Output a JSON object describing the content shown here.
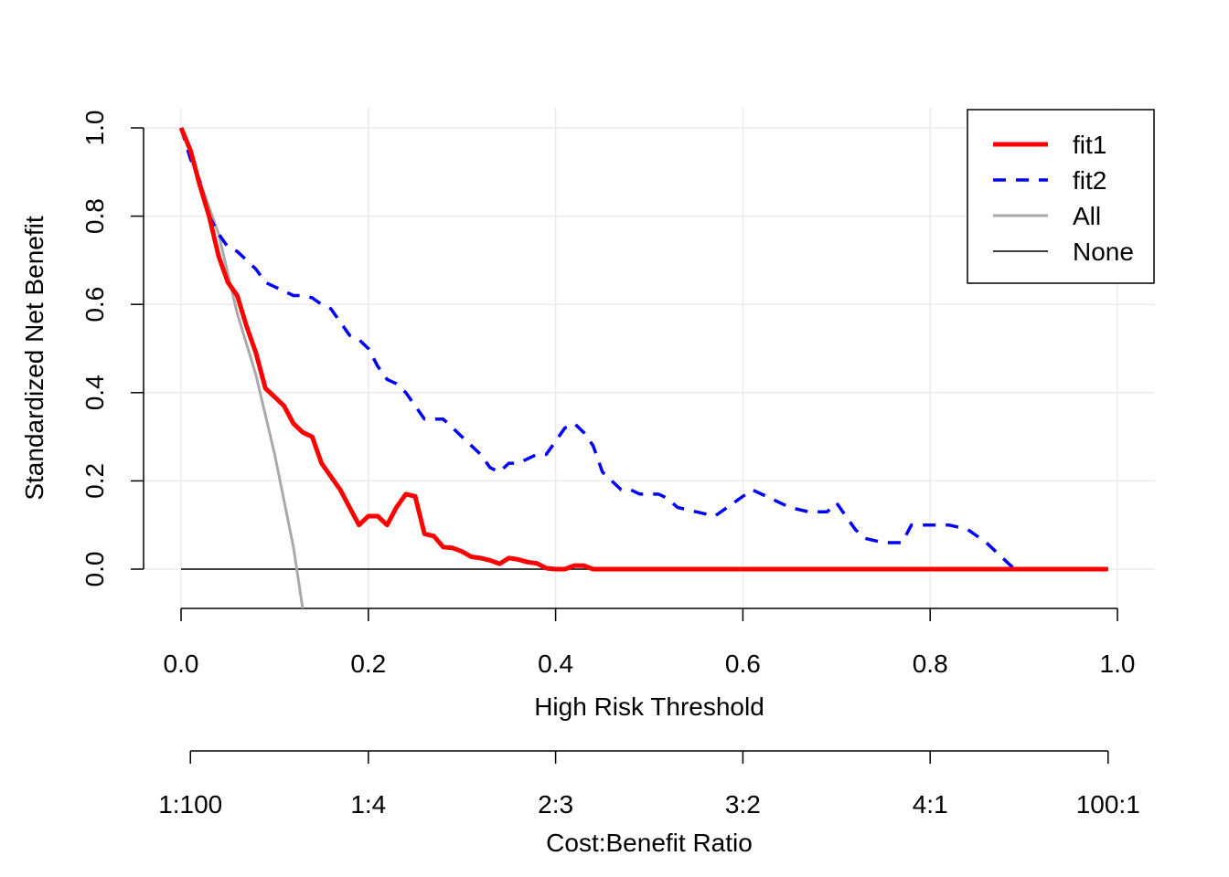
{
  "chart_data": {
    "type": "line",
    "title": "",
    "xlabel": "High Risk Threshold",
    "ylabel": "Standardized Net Benefit",
    "xlim": [
      0,
      1
    ],
    "ylim": [
      -0.09,
      1.0
    ],
    "grid": true,
    "x_ticks": [
      "0.0",
      "0.2",
      "0.4",
      "0.6",
      "0.8",
      "1.0"
    ],
    "y_ticks": [
      "0.0",
      "0.2",
      "0.4",
      "0.6",
      "0.8",
      "1.0"
    ],
    "secondary_axis": {
      "label": "Cost:Benefit Ratio",
      "ticks": [
        "1:100",
        "1:4",
        "2:3",
        "3:2",
        "4:1",
        "100:1"
      ],
      "tick_x": [
        0.01,
        0.2,
        0.4,
        0.6,
        0.8,
        0.99
      ]
    },
    "legend": {
      "position": "top-right",
      "entries": [
        "fit1",
        "fit2",
        "All",
        "None"
      ]
    },
    "series": [
      {
        "name": "fit1",
        "color": "#ff0000",
        "dash": "solid",
        "points": [
          [
            0.0,
            1.0
          ],
          [
            0.01,
            0.95
          ],
          [
            0.02,
            0.87
          ],
          [
            0.03,
            0.8
          ],
          [
            0.04,
            0.71
          ],
          [
            0.05,
            0.65
          ],
          [
            0.06,
            0.62
          ],
          [
            0.07,
            0.55
          ],
          [
            0.08,
            0.49
          ],
          [
            0.09,
            0.41
          ],
          [
            0.1,
            0.39
          ],
          [
            0.11,
            0.37
          ],
          [
            0.12,
            0.33
          ],
          [
            0.13,
            0.31
          ],
          [
            0.14,
            0.3
          ],
          [
            0.15,
            0.24
          ],
          [
            0.16,
            0.21
          ],
          [
            0.17,
            0.18
          ],
          [
            0.18,
            0.14
          ],
          [
            0.19,
            0.1
          ],
          [
            0.2,
            0.12
          ],
          [
            0.21,
            0.12
          ],
          [
            0.22,
            0.1
          ],
          [
            0.23,
            0.14
          ],
          [
            0.24,
            0.17
          ],
          [
            0.25,
            0.165
          ],
          [
            0.26,
            0.08
          ],
          [
            0.27,
            0.075
          ],
          [
            0.28,
            0.05
          ],
          [
            0.29,
            0.048
          ],
          [
            0.3,
            0.04
          ],
          [
            0.31,
            0.028
          ],
          [
            0.32,
            0.025
          ],
          [
            0.33,
            0.02
          ],
          [
            0.34,
            0.012
          ],
          [
            0.35,
            0.025
          ],
          [
            0.36,
            0.022
          ],
          [
            0.37,
            0.016
          ],
          [
            0.38,
            0.013
          ],
          [
            0.39,
            0.002
          ],
          [
            0.4,
            0.0
          ],
          [
            0.41,
            0.0
          ],
          [
            0.42,
            0.008
          ],
          [
            0.43,
            0.008
          ],
          [
            0.44,
            0.0
          ],
          [
            0.5,
            0.0
          ],
          [
            0.6,
            0.0
          ],
          [
            0.7,
            0.0
          ],
          [
            0.8,
            0.0
          ],
          [
            0.9,
            0.0
          ],
          [
            0.99,
            0.0
          ]
        ]
      },
      {
        "name": "fit2",
        "color": "#0000ff",
        "dash": "dashed",
        "points": [
          [
            0.0,
            1.0
          ],
          [
            0.01,
            0.93
          ],
          [
            0.02,
            0.88
          ],
          [
            0.03,
            0.8
          ],
          [
            0.04,
            0.76
          ],
          [
            0.05,
            0.73
          ],
          [
            0.06,
            0.72
          ],
          [
            0.07,
            0.7
          ],
          [
            0.08,
            0.68
          ],
          [
            0.09,
            0.65
          ],
          [
            0.1,
            0.64
          ],
          [
            0.11,
            0.63
          ],
          [
            0.12,
            0.62
          ],
          [
            0.13,
            0.62
          ],
          [
            0.14,
            0.615
          ],
          [
            0.15,
            0.6
          ],
          [
            0.16,
            0.59
          ],
          [
            0.17,
            0.56
          ],
          [
            0.18,
            0.53
          ],
          [
            0.19,
            0.52
          ],
          [
            0.2,
            0.5
          ],
          [
            0.21,
            0.46
          ],
          [
            0.22,
            0.43
          ],
          [
            0.23,
            0.42
          ],
          [
            0.24,
            0.4
          ],
          [
            0.25,
            0.37
          ],
          [
            0.26,
            0.34
          ],
          [
            0.27,
            0.34
          ],
          [
            0.28,
            0.34
          ],
          [
            0.29,
            0.32
          ],
          [
            0.3,
            0.3
          ],
          [
            0.31,
            0.28
          ],
          [
            0.32,
            0.26
          ],
          [
            0.33,
            0.23
          ],
          [
            0.34,
            0.22
          ],
          [
            0.35,
            0.24
          ],
          [
            0.36,
            0.24
          ],
          [
            0.37,
            0.25
          ],
          [
            0.38,
            0.26
          ],
          [
            0.39,
            0.26
          ],
          [
            0.4,
            0.29
          ],
          [
            0.41,
            0.32
          ],
          [
            0.42,
            0.33
          ],
          [
            0.43,
            0.31
          ],
          [
            0.44,
            0.28
          ],
          [
            0.45,
            0.22
          ],
          [
            0.46,
            0.2
          ],
          [
            0.47,
            0.18
          ],
          [
            0.48,
            0.18
          ],
          [
            0.49,
            0.17
          ],
          [
            0.5,
            0.17
          ],
          [
            0.51,
            0.17
          ],
          [
            0.52,
            0.16
          ],
          [
            0.53,
            0.14
          ],
          [
            0.55,
            0.13
          ],
          [
            0.57,
            0.12
          ],
          [
            0.59,
            0.15
          ],
          [
            0.61,
            0.18
          ],
          [
            0.63,
            0.16
          ],
          [
            0.65,
            0.14
          ],
          [
            0.67,
            0.13
          ],
          [
            0.69,
            0.13
          ],
          [
            0.7,
            0.15
          ],
          [
            0.72,
            0.09
          ],
          [
            0.73,
            0.07
          ],
          [
            0.75,
            0.06
          ],
          [
            0.77,
            0.06
          ],
          [
            0.78,
            0.1
          ],
          [
            0.8,
            0.1
          ],
          [
            0.82,
            0.1
          ],
          [
            0.84,
            0.09
          ],
          [
            0.86,
            0.06
          ],
          [
            0.87,
            0.04
          ],
          [
            0.89,
            0.0
          ],
          [
            0.95,
            0.0
          ],
          [
            0.99,
            0.0
          ]
        ]
      },
      {
        "name": "All",
        "color": "#a9a9a9",
        "dash": "solid",
        "points": [
          [
            0.0,
            1.0
          ],
          [
            0.02,
            0.88
          ],
          [
            0.04,
            0.76
          ],
          [
            0.06,
            0.58
          ],
          [
            0.08,
            0.44
          ],
          [
            0.1,
            0.26
          ],
          [
            0.12,
            0.05
          ],
          [
            0.13,
            -0.09
          ]
        ]
      },
      {
        "name": "None",
        "color": "#000000",
        "dash": "solid",
        "points": [
          [
            0.0,
            0.0
          ],
          [
            0.99,
            0.0
          ]
        ]
      }
    ]
  }
}
